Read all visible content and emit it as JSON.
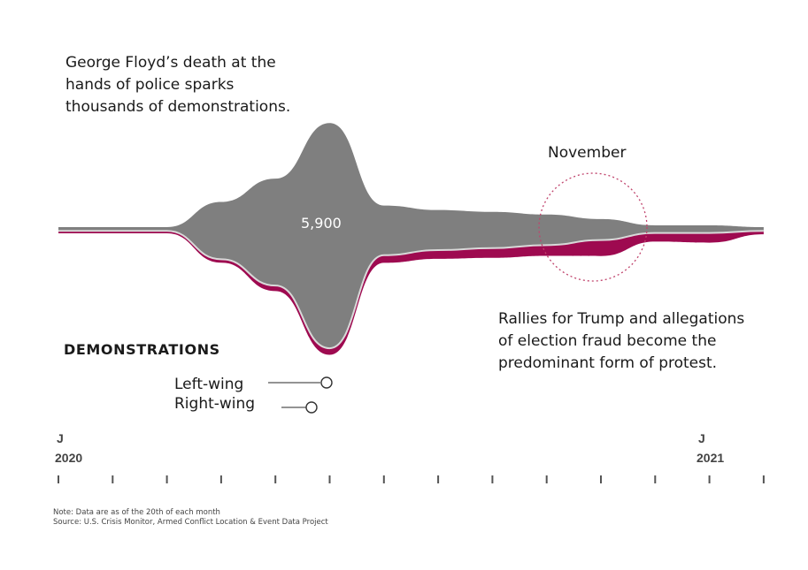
{
  "annotations": {
    "floyd": [
      "George Floyd’s death at the",
      "hands of police sparks",
      "thousands of demonstrations."
    ],
    "rallies": [
      "Rallies for Trump and allegations",
      "of election fraud become the",
      "predominant form of protest."
    ],
    "november": "November",
    "peak": "5,900"
  },
  "section_title": "DEMONSTRATIONS",
  "legend": {
    "left": "Left-wing",
    "right": "Right-wing"
  },
  "axis": {
    "start": {
      "month": "J",
      "year": "2020"
    },
    "end": {
      "month": "J",
      "year": "2021"
    }
  },
  "footer": {
    "note": "Note: Data are as of the 20th of each month",
    "source": "Source: U.S. Crisis Monitor, Armed Conflict Location & Event Data Project"
  },
  "colors": {
    "left": "#7f7f7f",
    "right": "#9e0a50",
    "highlight": "#c0436c"
  },
  "chart_data": {
    "type": "area",
    "subtype": "streamgraph",
    "x": [
      "2020-01",
      "2020-02",
      "2020-03",
      "2020-04",
      "2020-05",
      "2020-06",
      "2020-07",
      "2020-08",
      "2020-09",
      "2020-10",
      "2020-11",
      "2020-12",
      "2021-01",
      "2021-02"
    ],
    "series": [
      {
        "name": "Left-wing",
        "values": [
          100,
          100,
          100,
          1500,
          2800,
          5900,
          1300,
          1050,
          950,
          800,
          550,
          200,
          200,
          100
        ]
      },
      {
        "name": "Right-wing",
        "values": [
          50,
          50,
          50,
          100,
          200,
          250,
          300,
          350,
          400,
          450,
          700,
          350,
          400,
          100
        ]
      }
    ],
    "highlight": {
      "x": "2020-11",
      "label": "November"
    },
    "peak_label": {
      "x": "2020-06",
      "value": 5900,
      "text": "5,900"
    }
  }
}
